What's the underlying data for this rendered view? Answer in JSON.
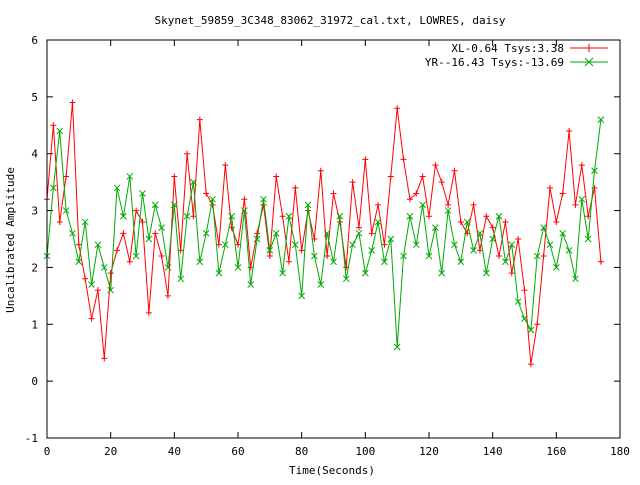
{
  "chart_data": {
    "type": "line",
    "title": "Skynet_59859_3C348_83062_31972_cal.txt, LOWRES, daisy",
    "xlabel": "Time(Seconds)",
    "ylabel": "Uncalibrated Amplitude",
    "xlim": [
      0,
      180
    ],
    "ylim": [
      -1,
      6
    ],
    "xticks": [
      0,
      20,
      40,
      60,
      80,
      100,
      120,
      140,
      160,
      180
    ],
    "yticks": [
      -1,
      0,
      1,
      2,
      3,
      4,
      5,
      6
    ],
    "grid": false,
    "legend_position": "top-right",
    "series": [
      {
        "name": "XL-0.64 Tsys:3.38",
        "color": "#ff0000",
        "marker": "plus",
        "x": [
          0,
          2,
          4,
          6,
          8,
          10,
          12,
          14,
          16,
          18,
          20,
          22,
          24,
          26,
          28,
          30,
          32,
          34,
          36,
          38,
          40,
          42,
          44,
          46,
          48,
          50,
          52,
          54,
          56,
          58,
          60,
          62,
          64,
          66,
          68,
          70,
          72,
          74,
          76,
          78,
          80,
          82,
          84,
          86,
          88,
          90,
          92,
          94,
          96,
          98,
          100,
          102,
          104,
          106,
          108,
          110,
          112,
          114,
          116,
          118,
          120,
          122,
          124,
          126,
          128,
          130,
          132,
          134,
          136,
          138,
          140,
          142,
          144,
          146,
          148,
          150,
          152,
          154,
          156,
          158,
          160,
          162,
          164,
          166,
          168,
          170,
          172,
          174
        ],
        "y": [
          3.2,
          4.5,
          2.8,
          3.6,
          4.9,
          2.4,
          1.8,
          1.1,
          1.6,
          0.4,
          1.9,
          2.3,
          2.6,
          2.1,
          3.0,
          2.8,
          1.2,
          2.6,
          2.2,
          1.5,
          3.6,
          2.3,
          4.0,
          2.9,
          4.6,
          3.3,
          3.1,
          2.4,
          3.8,
          2.7,
          2.4,
          3.2,
          2.0,
          2.6,
          3.1,
          2.2,
          3.6,
          2.9,
          2.1,
          3.4,
          2.3,
          3.0,
          2.5,
          3.7,
          2.2,
          3.3,
          2.8,
          2.0,
          3.5,
          2.7,
          3.9,
          2.6,
          3.1,
          2.4,
          3.6,
          4.8,
          3.9,
          3.2,
          3.3,
          3.6,
          2.9,
          3.8,
          3.5,
          3.1,
          3.7,
          2.8,
          2.6,
          3.1,
          2.3,
          2.9,
          2.7,
          2.2,
          2.8,
          1.9,
          2.5,
          1.6,
          0.3,
          1.0,
          2.2,
          3.4,
          2.8,
          3.3,
          4.4,
          3.1,
          3.8,
          2.9,
          3.4,
          2.1
        ]
      },
      {
        "name": "YR--16.43 Tsys:-13.69",
        "color": "#00aa00",
        "marker": "cross",
        "x": [
          0,
          2,
          4,
          6,
          8,
          10,
          12,
          14,
          16,
          18,
          20,
          22,
          24,
          26,
          28,
          30,
          32,
          34,
          36,
          38,
          40,
          42,
          44,
          46,
          48,
          50,
          52,
          54,
          56,
          58,
          60,
          62,
          64,
          66,
          68,
          70,
          72,
          74,
          76,
          78,
          80,
          82,
          84,
          86,
          88,
          90,
          92,
          94,
          96,
          98,
          100,
          102,
          104,
          106,
          108,
          110,
          112,
          114,
          116,
          118,
          120,
          122,
          124,
          126,
          128,
          130,
          132,
          134,
          136,
          138,
          140,
          142,
          144,
          146,
          148,
          150,
          152,
          154,
          156,
          158,
          160,
          162,
          164,
          166,
          168,
          170,
          172,
          174
        ],
        "y": [
          2.2,
          3.4,
          4.4,
          3.0,
          2.6,
          2.1,
          2.8,
          1.7,
          2.4,
          2.0,
          1.6,
          3.4,
          2.9,
          3.6,
          2.2,
          3.3,
          2.5,
          3.1,
          2.7,
          2.0,
          3.1,
          1.8,
          2.9,
          3.5,
          2.1,
          2.6,
          3.2,
          1.9,
          2.4,
          2.9,
          2.0,
          3.0,
          1.7,
          2.5,
          3.2,
          2.3,
          2.6,
          1.9,
          2.9,
          2.4,
          1.5,
          3.1,
          2.2,
          1.7,
          2.6,
          2.1,
          2.9,
          1.8,
          2.4,
          2.6,
          1.9,
          2.3,
          2.8,
          2.1,
          2.5,
          0.6,
          2.2,
          2.9,
          2.4,
          3.1,
          2.2,
          2.7,
          1.9,
          3.0,
          2.4,
          2.1,
          2.8,
          2.3,
          2.6,
          1.9,
          2.5,
          2.9,
          2.1,
          2.4,
          1.4,
          1.1,
          0.9,
          2.2,
          2.7,
          2.4,
          2.0,
          2.6,
          2.3,
          1.8,
          3.2,
          2.5,
          3.7,
          4.6
        ]
      }
    ]
  }
}
